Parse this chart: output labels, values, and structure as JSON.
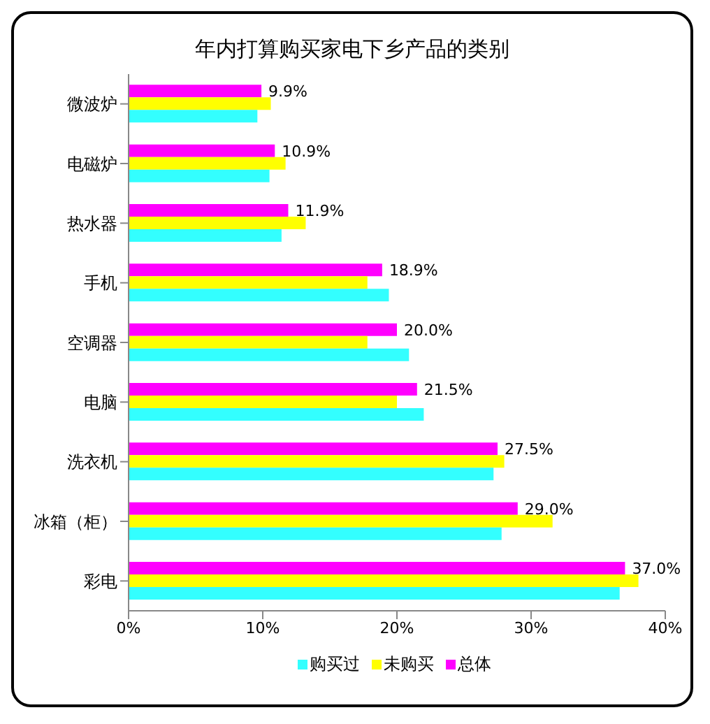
{
  "chart_data": {
    "type": "bar",
    "orientation": "horizontal",
    "title": "年内打算购买家电下乡产品的类别",
    "categories": [
      "微波炉",
      "电磁炉",
      "热水器",
      "手机",
      "空调器",
      "电脑",
      "洗衣机",
      "冰箱（柜）",
      "彩电"
    ],
    "series": [
      {
        "name": "购买过",
        "color": "#33ffff",
        "values": [
          9.6,
          10.5,
          11.4,
          19.4,
          20.9,
          22.0,
          27.2,
          27.8,
          36.6
        ]
      },
      {
        "name": "未购买",
        "color": "#ffff00",
        "values": [
          10.6,
          11.7,
          13.2,
          17.8,
          17.8,
          20.0,
          28.0,
          31.6,
          38.0
        ]
      },
      {
        "name": "总体",
        "color": "#ff00ff",
        "values": [
          9.9,
          10.9,
          11.9,
          18.9,
          20.0,
          21.5,
          27.5,
          29.0,
          37.0
        ],
        "value_labels": [
          "9.9%",
          "10.9%",
          "11.9%",
          "18.9%",
          "20.0%",
          "21.5%",
          "27.5%",
          "29.0%",
          "37.0%"
        ]
      }
    ],
    "xlim": [
      0,
      40
    ],
    "xticks": [
      {
        "value": 0,
        "label": "0%"
      },
      {
        "value": 10,
        "label": "10%"
      },
      {
        "value": 20,
        "label": "20%"
      },
      {
        "value": 30,
        "label": "30%"
      },
      {
        "value": 40,
        "label": "40%"
      }
    ],
    "grid": false,
    "legend": "bottom"
  }
}
